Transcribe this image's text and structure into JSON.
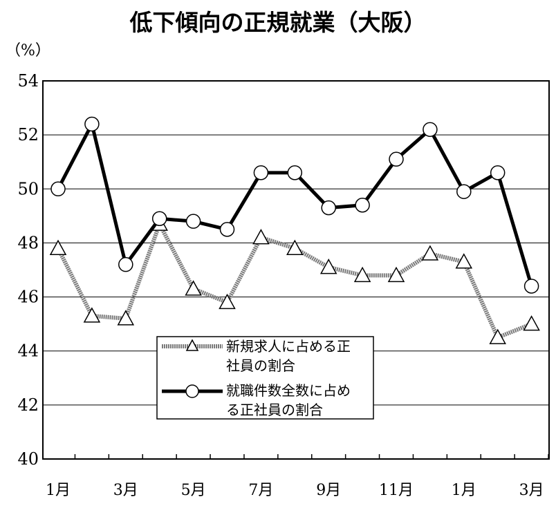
{
  "chart_data": {
    "type": "line",
    "title": "低下傾向の正規就業（大阪）",
    "unit_label": "（%）",
    "ylim": [
      40,
      54
    ],
    "yticks": [
      "54",
      "52",
      "50",
      "48",
      "46",
      "44",
      "42",
      "40"
    ],
    "xtick_labels": [
      "1月",
      "3月",
      "5月",
      "7月",
      "9月",
      "11月",
      "1月",
      "3月"
    ],
    "grid": true,
    "legend_position": "bottom-center",
    "x": [
      1,
      2,
      3,
      4,
      5,
      6,
      7,
      8,
      9,
      10,
      11,
      12,
      13,
      14,
      15
    ],
    "series": [
      {
        "name": "新規求人に占める正社員の割合",
        "legend_lines": [
          "新規求人に占める正",
          "社員の割合"
        ],
        "marker": "triangle",
        "color": "#7a7a7a",
        "values": [
          47.8,
          45.3,
          45.2,
          48.7,
          46.3,
          45.8,
          48.2,
          47.8,
          47.1,
          46.8,
          46.8,
          47.6,
          47.3,
          44.5,
          45.0
        ]
      },
      {
        "name": "就職件数全数に占める正社員の割合",
        "legend_lines": [
          "就職件数全数に占め",
          "る正社員の割合"
        ],
        "marker": "circle",
        "color": "#000000",
        "values": [
          50.0,
          52.4,
          47.2,
          48.9,
          48.8,
          48.5,
          50.6,
          50.6,
          49.3,
          49.4,
          51.1,
          52.2,
          49.9,
          50.6,
          46.4
        ]
      }
    ]
  }
}
